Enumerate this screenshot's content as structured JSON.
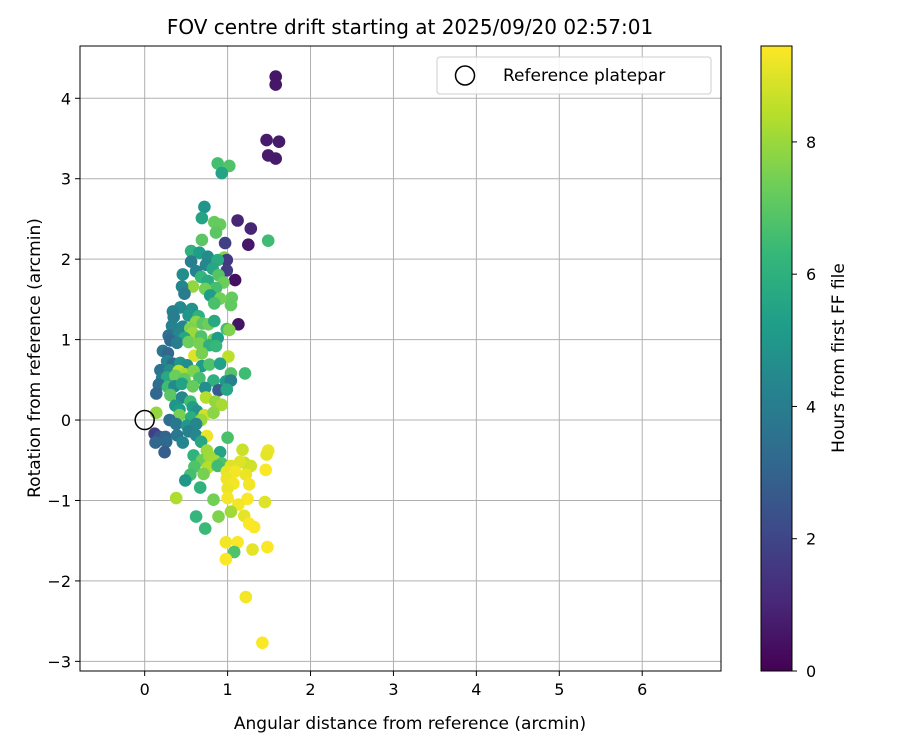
{
  "chart_data": {
    "type": "scatter",
    "title": "FOV centre drift starting at 2025/09/20 02:57:01",
    "xlabel": "Angular distance from reference (arcmin)",
    "ylabel": "Rotation from reference (arcmin)",
    "xlim": [
      -0.78,
      6.95
    ],
    "ylim": [
      -3.12,
      4.65
    ],
    "xticks": [
      0,
      1,
      2,
      3,
      4,
      5,
      6
    ],
    "yticks": [
      -3,
      -2,
      -1,
      0,
      1,
      2,
      3,
      4
    ],
    "xtick_labels": [
      "0",
      "1",
      "2",
      "3",
      "4",
      "5",
      "6"
    ],
    "ytick_labels": [
      "−3",
      "−2",
      "−1",
      "0",
      "1",
      "2",
      "3",
      "4"
    ],
    "grid": true,
    "legend": {
      "position": "top-right",
      "entries": [
        "Reference platepar"
      ]
    },
    "reference_point": {
      "name": "Reference platepar",
      "x": 0,
      "y": 0
    },
    "colorbar": {
      "label": "Hours from first FF file",
      "range": [
        0,
        9.45
      ],
      "ticks": [
        0,
        2,
        4,
        6,
        8
      ],
      "tick_labels": [
        "0",
        "2",
        "4",
        "6",
        "8"
      ],
      "colormap": "viridis",
      "stops": [
        "#440154",
        "#482878",
        "#3e4989",
        "#31688e",
        "#26828e",
        "#1f9e89",
        "#35b779",
        "#6ece58",
        "#b5de2b",
        "#fde725"
      ]
    },
    "series": [
      {
        "name": "FOV centre drift",
        "points": [
          [
            1.58,
            4.27,
            0.6
          ],
          [
            1.58,
            4.17,
            0.6
          ],
          [
            1.47,
            3.48,
            0.7
          ],
          [
            1.62,
            3.46,
            0.7
          ],
          [
            1.49,
            3.29,
            0.7
          ],
          [
            1.58,
            3.25,
            0.7
          ],
          [
            0.88,
            3.19,
            6.6
          ],
          [
            1.02,
            3.16,
            6.8
          ],
          [
            0.93,
            3.07,
            5.5
          ],
          [
            0.72,
            2.65,
            4.9
          ],
          [
            1.12,
            2.48,
            1.0
          ],
          [
            0.69,
            2.51,
            5.5
          ],
          [
            1.28,
            2.38,
            1.0
          ],
          [
            0.84,
            2.46,
            7.2
          ],
          [
            0.91,
            2.43,
            7.2
          ],
          [
            0.86,
            2.33,
            7.0
          ],
          [
            0.69,
            2.24,
            7.0
          ],
          [
            0.97,
            2.2,
            1.8
          ],
          [
            1.25,
            2.18,
            0.6
          ],
          [
            1.49,
            2.23,
            6.5
          ],
          [
            0.56,
            2.1,
            6.0
          ],
          [
            0.66,
            2.08,
            5.2
          ],
          [
            0.76,
            2.03,
            4.6
          ],
          [
            0.96,
            2.02,
            7.7
          ],
          [
            0.99,
            1.99,
            1.6
          ],
          [
            0.88,
            1.99,
            5.8
          ],
          [
            0.56,
            1.97,
            4.0
          ],
          [
            0.74,
            1.93,
            4.4
          ],
          [
            0.99,
            1.86,
            1.7
          ],
          [
            0.82,
            1.88,
            5.6
          ],
          [
            0.62,
            1.85,
            4.2
          ],
          [
            0.46,
            1.81,
            4.6
          ],
          [
            0.89,
            1.8,
            6.9
          ],
          [
            0.68,
            1.78,
            6.2
          ],
          [
            0.76,
            1.73,
            5.8
          ],
          [
            1.09,
            1.74,
            0.4
          ],
          [
            0.95,
            1.71,
            7.3
          ],
          [
            0.58,
            1.66,
            7.9
          ],
          [
            0.45,
            1.66,
            4.3
          ],
          [
            0.86,
            1.64,
            6.6
          ],
          [
            0.73,
            1.63,
            7.4
          ],
          [
            0.48,
            1.57,
            3.9
          ],
          [
            0.79,
            1.55,
            5.2
          ],
          [
            1.05,
            1.52,
            7.2
          ],
          [
            0.91,
            1.51,
            7.4
          ],
          [
            0.84,
            1.45,
            6.7
          ],
          [
            1.04,
            1.43,
            7.1
          ],
          [
            0.57,
            1.38,
            4.8
          ],
          [
            0.43,
            1.4,
            4.5
          ],
          [
            0.34,
            1.35,
            4.1
          ],
          [
            0.35,
            1.28,
            4.0
          ],
          [
            0.53,
            1.3,
            5.0
          ],
          [
            0.65,
            1.29,
            6.0
          ],
          [
            0.62,
            1.22,
            7.8
          ],
          [
            0.7,
            1.2,
            7.0
          ],
          [
            0.77,
            1.19,
            7.3
          ],
          [
            0.84,
            1.23,
            5.7
          ],
          [
            1.13,
            1.19,
            0.5
          ],
          [
            0.33,
            1.17,
            4.2
          ],
          [
            0.46,
            1.16,
            4.3
          ],
          [
            0.55,
            1.14,
            7.6
          ],
          [
            0.58,
            1.08,
            8.0
          ],
          [
            0.99,
            1.13,
            6.5
          ],
          [
            1.02,
            1.12,
            7.6
          ],
          [
            0.29,
            1.05,
            3.5
          ],
          [
            0.41,
            1.06,
            4.4
          ],
          [
            0.48,
            1.02,
            5.6
          ],
          [
            0.68,
            1.04,
            6.8
          ],
          [
            0.83,
            1.0,
            7.5
          ],
          [
            0.88,
            1.02,
            5.2
          ],
          [
            0.31,
            0.99,
            3.2
          ],
          [
            0.39,
            0.96,
            4.0
          ],
          [
            0.53,
            0.97,
            7.3
          ],
          [
            0.66,
            0.95,
            7.5
          ],
          [
            0.78,
            0.93,
            6.0
          ],
          [
            0.86,
            0.92,
            6.3
          ],
          [
            0.22,
            0.86,
            3.8
          ],
          [
            0.28,
            0.83,
            3.1
          ],
          [
            0.6,
            0.8,
            9.0
          ],
          [
            0.69,
            0.83,
            7.5
          ],
          [
            1.01,
            0.79,
            8.5
          ],
          [
            0.27,
            0.73,
            4.3
          ],
          [
            0.34,
            0.7,
            3.3
          ],
          [
            0.43,
            0.71,
            4.9
          ],
          [
            0.51,
            0.68,
            4.6
          ],
          [
            0.69,
            0.67,
            5.2
          ],
          [
            0.78,
            0.69,
            6.8
          ],
          [
            0.91,
            0.7,
            5.4
          ],
          [
            0.19,
            0.62,
            3.6
          ],
          [
            0.3,
            0.62,
            4.6
          ],
          [
            0.41,
            0.61,
            8.5
          ],
          [
            0.48,
            0.57,
            8.2
          ],
          [
            0.59,
            0.61,
            7.6
          ],
          [
            1.21,
            0.58,
            6.5
          ],
          [
            1.04,
            0.58,
            6.9
          ],
          [
            0.21,
            0.52,
            3.9
          ],
          [
            0.27,
            0.53,
            5.7
          ],
          [
            0.37,
            0.55,
            7.3
          ],
          [
            0.48,
            0.51,
            7.1
          ],
          [
            0.66,
            0.52,
            6.6
          ],
          [
            0.83,
            0.49,
            6.0
          ],
          [
            0.98,
            0.48,
            5.1
          ],
          [
            1.04,
            0.49,
            4.1
          ],
          [
            0.17,
            0.44,
            3.4
          ],
          [
            0.28,
            0.41,
            6.5
          ],
          [
            0.36,
            0.42,
            4.5
          ],
          [
            0.45,
            0.45,
            5.4
          ],
          [
            0.58,
            0.42,
            7.2
          ],
          [
            0.73,
            0.4,
            4.7
          ],
          [
            0.89,
            0.37,
            2.7
          ],
          [
            0.99,
            0.38,
            5.6
          ],
          [
            0.14,
            0.33,
            3.1
          ],
          [
            0.31,
            0.31,
            7.0
          ],
          [
            0.45,
            0.28,
            4.4
          ],
          [
            0.55,
            0.23,
            6.5
          ],
          [
            0.74,
            0.28,
            8.4
          ],
          [
            0.85,
            0.23,
            7.9
          ],
          [
            0.93,
            0.19,
            8.2
          ],
          [
            0.37,
            0.18,
            4.9
          ],
          [
            0.42,
            0.13,
            5.2
          ],
          [
            0.58,
            0.16,
            5.3
          ],
          [
            0.63,
            0.11,
            4.8
          ],
          [
            0.72,
            0.06,
            8.8
          ],
          [
            0.83,
            0.09,
            7.8
          ],
          [
            0.42,
            0.06,
            7.5
          ],
          [
            0.56,
            0.03,
            5.9
          ],
          [
            0.68,
            0.0,
            8.0
          ],
          [
            0.14,
            0.09,
            7.9
          ],
          [
            0.3,
            0.0,
            3.4
          ],
          [
            0.38,
            -0.05,
            3.8
          ],
          [
            0.51,
            -0.07,
            5.0
          ],
          [
            0.62,
            -0.05,
            4.4
          ],
          [
            0.12,
            -0.17,
            1.8
          ],
          [
            0.18,
            -0.21,
            2.5
          ],
          [
            0.25,
            -0.21,
            3.0
          ],
          [
            0.39,
            -0.19,
            3.8
          ],
          [
            0.53,
            -0.14,
            4.1
          ],
          [
            0.62,
            -0.19,
            4.4
          ],
          [
            0.75,
            -0.2,
            9.2
          ],
          [
            0.13,
            -0.28,
            3.1
          ],
          [
            0.26,
            -0.27,
            3.2
          ],
          [
            0.46,
            -0.28,
            4.3
          ],
          [
            0.68,
            -0.27,
            5.6
          ],
          [
            1.0,
            -0.22,
            6.7
          ],
          [
            0.75,
            -0.38,
            8.0
          ],
          [
            0.91,
            -0.4,
            5.5
          ],
          [
            0.24,
            -0.4,
            2.8
          ],
          [
            0.59,
            -0.44,
            6.1
          ],
          [
            0.69,
            -0.5,
            7.3
          ],
          [
            0.78,
            -0.45,
            8.1
          ],
          [
            0.85,
            -0.51,
            8.2
          ],
          [
            0.93,
            -0.54,
            6.8
          ],
          [
            1.18,
            -0.37,
            8.7
          ],
          [
            1.2,
            -0.53,
            8.6
          ],
          [
            1.49,
            -0.38,
            9.2
          ],
          [
            0.6,
            -0.58,
            6.8
          ],
          [
            0.76,
            -0.59,
            8.4
          ],
          [
            0.88,
            -0.57,
            6.5
          ],
          [
            1.04,
            -0.57,
            9.0
          ],
          [
            1.15,
            -0.52,
            9.0
          ],
          [
            1.28,
            -0.57,
            8.8
          ],
          [
            1.47,
            -0.43,
            9.1
          ],
          [
            0.55,
            -0.68,
            6.6
          ],
          [
            0.71,
            -0.67,
            7.5
          ],
          [
            0.99,
            -0.64,
            9.1
          ],
          [
            1.09,
            -0.64,
            9.3
          ],
          [
            1.22,
            -0.68,
            9.2
          ],
          [
            1.46,
            -0.62,
            9.4
          ],
          [
            0.49,
            -0.75,
            5.0
          ],
          [
            0.67,
            -0.84,
            6.1
          ],
          [
            0.99,
            -0.73,
            9.2
          ],
          [
            1.07,
            -0.79,
            9.3
          ],
          [
            1.26,
            -0.8,
            9.3
          ],
          [
            1.0,
            -0.85,
            9.2
          ],
          [
            0.38,
            -0.97,
            8.3
          ],
          [
            0.83,
            -0.99,
            7.4
          ],
          [
            1.0,
            -0.97,
            9.3
          ],
          [
            1.24,
            -0.98,
            9.4
          ],
          [
            1.45,
            -1.02,
            9.0
          ],
          [
            1.13,
            -1.05,
            9.3
          ],
          [
            0.62,
            -1.2,
            6.2
          ],
          [
            0.89,
            -1.2,
            7.6
          ],
          [
            1.04,
            -1.14,
            8.1
          ],
          [
            1.2,
            -1.19,
            9.1
          ],
          [
            1.26,
            -1.29,
            9.4
          ],
          [
            1.32,
            -1.33,
            9.4
          ],
          [
            0.73,
            -1.35,
            6.4
          ],
          [
            0.98,
            -1.52,
            9.3
          ],
          [
            1.12,
            -1.52,
            9.4
          ],
          [
            1.3,
            -1.61,
            9.1
          ],
          [
            1.48,
            -1.58,
            9.4
          ],
          [
            1.08,
            -1.64,
            6.8
          ],
          [
            0.98,
            -1.73,
            9.4
          ],
          [
            1.22,
            -2.2,
            9.3
          ],
          [
            1.42,
            -2.77,
            9.4
          ]
        ]
      }
    ]
  }
}
